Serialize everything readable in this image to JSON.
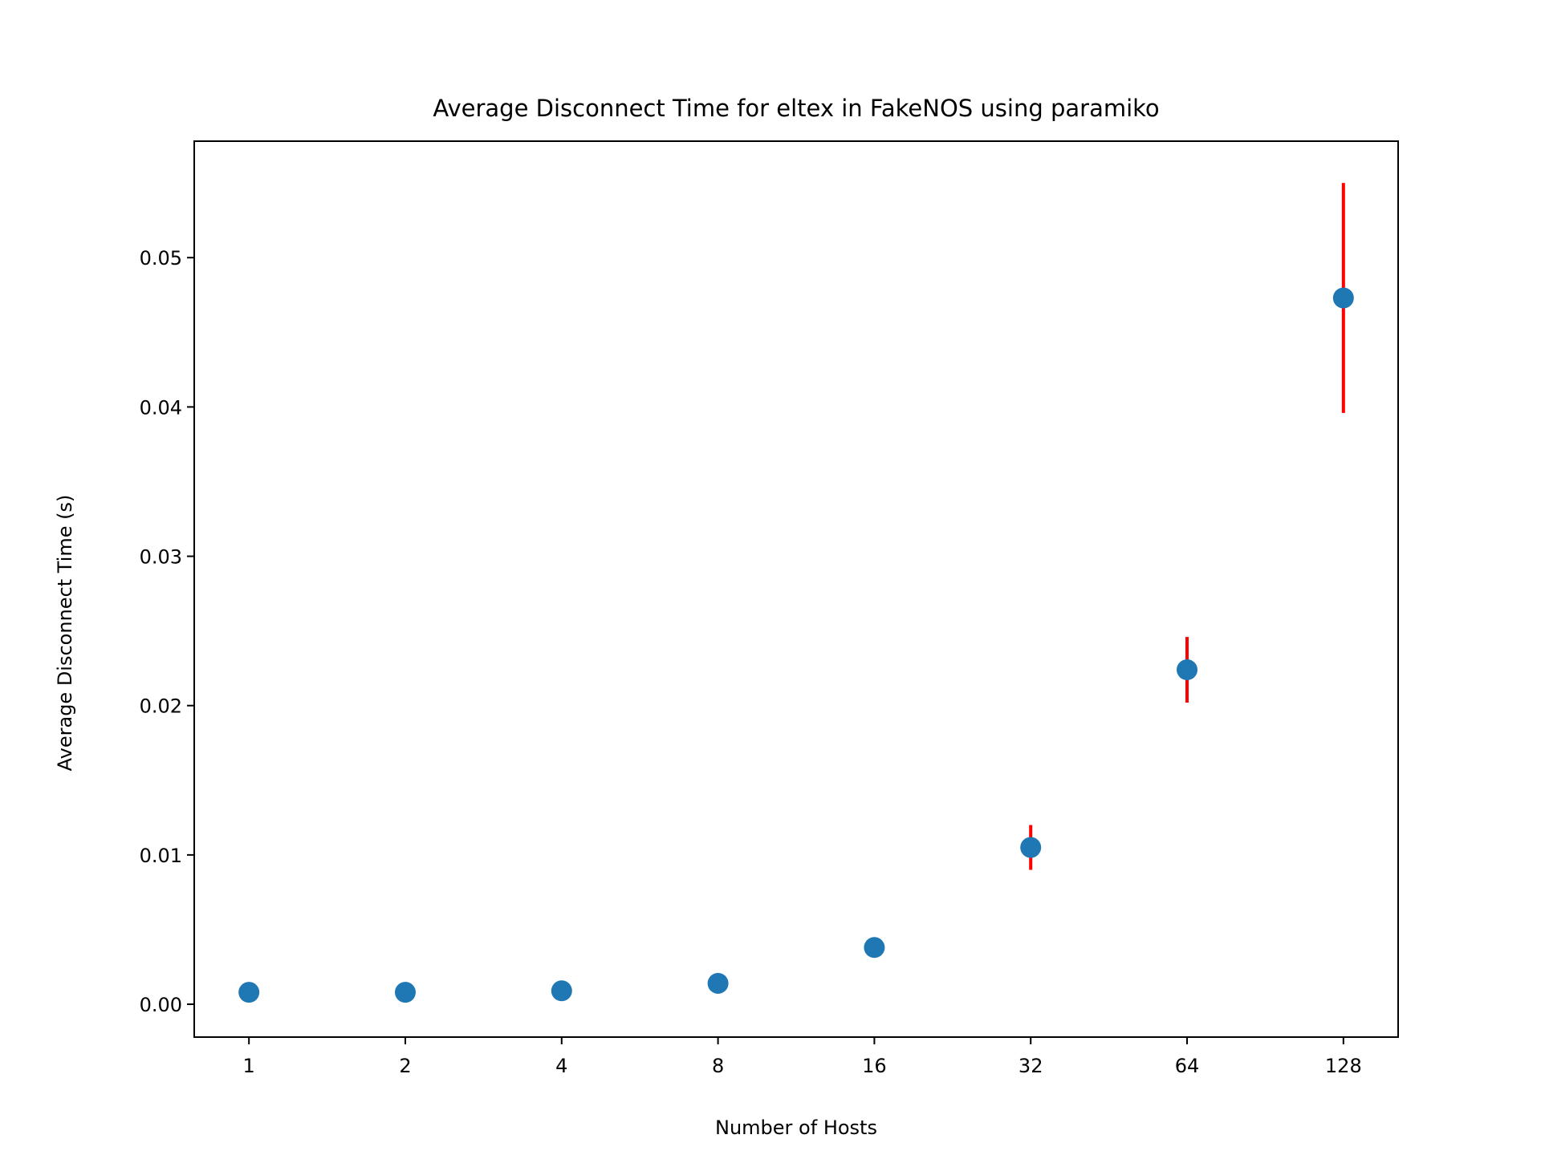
{
  "chart_data": {
    "type": "scatter",
    "title": "Average Disconnect Time for eltex in FakeNOS using paramiko",
    "xlabel": "Number of Hosts",
    "ylabel": "Average Disconnect Time (s)",
    "x_scale": "log2",
    "x": [
      1,
      2,
      4,
      8,
      16,
      32,
      64,
      128
    ],
    "x_tick_labels": [
      "1",
      "2",
      "4",
      "8",
      "16",
      "32",
      "64",
      "128"
    ],
    "y_ticks": [
      0.0,
      0.01,
      0.02,
      0.03,
      0.04,
      0.05
    ],
    "y_tick_labels": [
      "0.00",
      "0.01",
      "0.02",
      "0.03",
      "0.04",
      "0.05"
    ],
    "ylim": [
      -0.0022,
      0.0578
    ],
    "series": [
      {
        "values": [
          0.0008,
          0.0008,
          0.0009,
          0.0014,
          0.0038,
          0.0105,
          0.0224,
          0.0473
        ],
        "errors": [
          0.0,
          0.0,
          0.0,
          0.0,
          0.0,
          0.0015,
          0.0022,
          0.0077
        ],
        "marker_color": "#1f77b4",
        "error_color": "#ff0000"
      }
    ],
    "grid": false,
    "legend": "none"
  }
}
